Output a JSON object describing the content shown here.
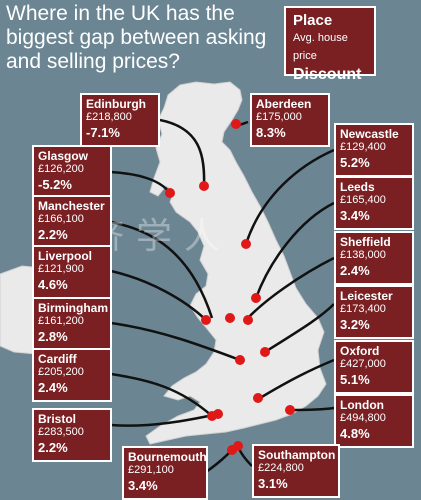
{
  "title": "Where in the UK has the biggest gap between asking and selling prices?",
  "legend": {
    "line1": "Place",
    "line2": "Avg. house price",
    "line3": "Discount"
  },
  "watermark": "经济学人",
  "colors": {
    "sea": "#6b8593",
    "land": "#eaeaea",
    "box": "#7a1f22",
    "dot": "#e01818"
  },
  "places": [
    {
      "city": "Edinburgh",
      "price": "£218,800",
      "discount": "-7.1%"
    },
    {
      "city": "Aberdeen",
      "price": "£175,000",
      "discount": "8.3%"
    },
    {
      "city": "Glasgow",
      "price": "£126,200",
      "discount": "-5.2%"
    },
    {
      "city": "Newcastle",
      "price": "£129,400",
      "discount": "5.2%"
    },
    {
      "city": "Manchester",
      "price": "£166,100",
      "discount": "2.2%"
    },
    {
      "city": "Leeds",
      "price": "£165,400",
      "discount": "3.4%"
    },
    {
      "city": "Sheffield",
      "price": "£138,000",
      "discount": "2.4%"
    },
    {
      "city": "Liverpool",
      "price": "£121,900",
      "discount": "4.6%"
    },
    {
      "city": "Leicester",
      "price": "£173,400",
      "discount": "3.2%"
    },
    {
      "city": "Birmingham",
      "price": "£161,200",
      "discount": "2.8%"
    },
    {
      "city": "Oxford",
      "price": "£427,000",
      "discount": "5.1%"
    },
    {
      "city": "Cardiff",
      "price": "£205,200",
      "discount": "2.4%"
    },
    {
      "city": "London",
      "price": "£494,800",
      "discount": "4.8%"
    },
    {
      "city": "Bristol",
      "price": "£283,500",
      "discount": "2.2%"
    },
    {
      "city": "Bournemouth",
      "price": "£291,100",
      "discount": "3.4%"
    },
    {
      "city": "Southampton",
      "price": "£224,800",
      "discount": "3.1%"
    }
  ]
}
